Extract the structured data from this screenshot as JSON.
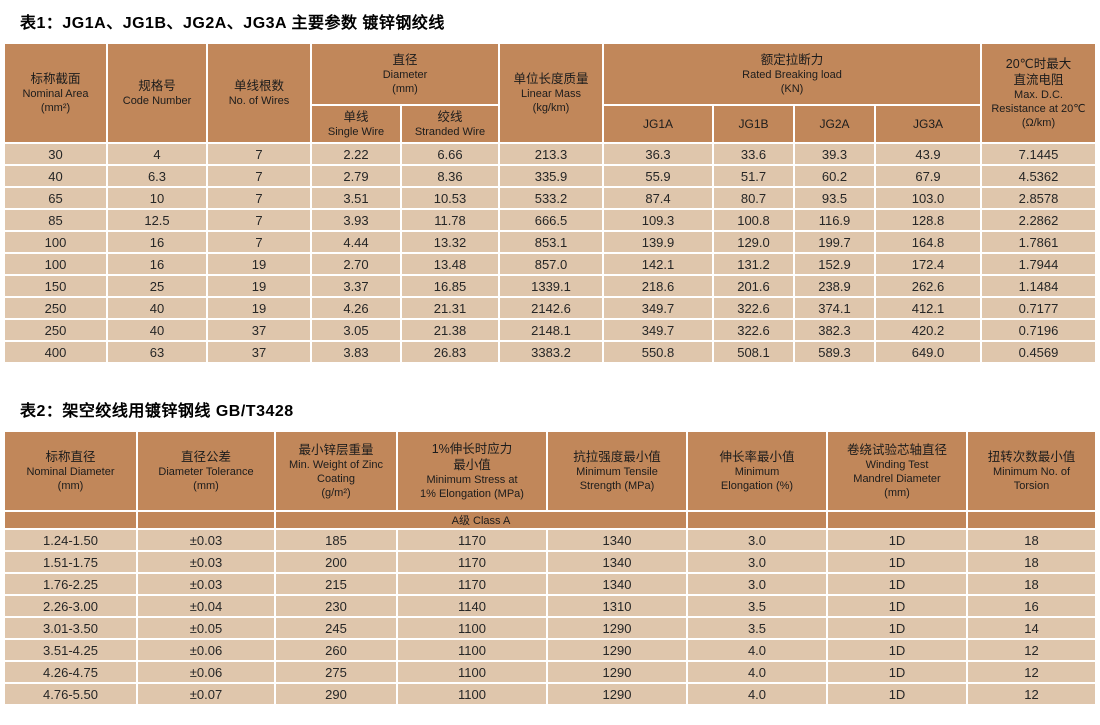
{
  "colors": {
    "header_cell": "#c1875a",
    "data_cell": "#dfc6ac",
    "gap": "#ffffff",
    "text": "#262626"
  },
  "table1": {
    "title": "表1：JG1A、JG1B、JG2A、JG3A 主要参数 镀锌钢绞线",
    "headers": {
      "nominal_area": [
        "标称截面",
        "Nominal Area",
        "(mm²)"
      ],
      "code_number": [
        "规格号",
        "Code Number"
      ],
      "no_of_wires": [
        "单线根数",
        "No. of Wires"
      ],
      "diameter_group": [
        "直径",
        "Diameter",
        "(mm)"
      ],
      "single_wire": [
        "单线",
        "Single Wire"
      ],
      "stranded_wire": [
        "绞线",
        "Stranded Wire"
      ],
      "linear_mass": [
        "单位长度质量",
        "Linear Mass",
        "(kg/km)"
      ],
      "breaking_load_group": [
        "额定拉断力",
        "Rated Breaking load",
        "(KN)"
      ],
      "jg1a": "JG1A",
      "jg1b": "JG1B",
      "jg2a": "JG2A",
      "jg3a": "JG3A",
      "resistance": [
        "20℃时最大",
        "直流电阻",
        "Max. D.C.",
        "Resistance at 20℃",
        "(Ω/km)"
      ]
    },
    "rows": [
      [
        "30",
        "4",
        "7",
        "2.22",
        "6.66",
        "213.3",
        "36.3",
        "33.6",
        "39.3",
        "43.9",
        "7.1445"
      ],
      [
        "40",
        "6.3",
        "7",
        "2.79",
        "8.36",
        "335.9",
        "55.9",
        "51.7",
        "60.2",
        "67.9",
        "4.5362"
      ],
      [
        "65",
        "10",
        "7",
        "3.51",
        "10.53",
        "533.2",
        "87.4",
        "80.7",
        "93.5",
        "103.0",
        "2.8578"
      ],
      [
        "85",
        "12.5",
        "7",
        "3.93",
        "11.78",
        "666.5",
        "109.3",
        "100.8",
        "116.9",
        "128.8",
        "2.2862"
      ],
      [
        "100",
        "16",
        "7",
        "4.44",
        "13.32",
        "853.1",
        "139.9",
        "129.0",
        "199.7",
        "164.8",
        "1.7861"
      ],
      [
        "100",
        "16",
        "19",
        "2.70",
        "13.48",
        "857.0",
        "142.1",
        "131.2",
        "152.9",
        "172.4",
        "1.7944"
      ],
      [
        "150",
        "25",
        "19",
        "3.37",
        "16.85",
        "1339.1",
        "218.6",
        "201.6",
        "238.9",
        "262.6",
        "1.1484"
      ],
      [
        "250",
        "40",
        "19",
        "4.26",
        "21.31",
        "2142.6",
        "349.7",
        "322.6",
        "374.1",
        "412.1",
        "0.7177"
      ],
      [
        "250",
        "40",
        "37",
        "3.05",
        "21.38",
        "2148.1",
        "349.7",
        "322.6",
        "382.3",
        "420.2",
        "0.7196"
      ],
      [
        "400",
        "63",
        "37",
        "3.83",
        "26.83",
        "3383.2",
        "550.8",
        "508.1",
        "589.3",
        "649.0",
        "0.4569"
      ]
    ]
  },
  "table2": {
    "title": "表2：架空绞线用镀锌钢线 GB/T3428",
    "headers": {
      "nominal_diameter": [
        "标称直径",
        "Nominal Diameter",
        "(mm)"
      ],
      "diameter_tolerance": [
        "直径公差",
        "Diameter Tolerance",
        "(mm)"
      ],
      "zinc_coating": [
        "最小锌层重量",
        "Min. Weight of Zinc",
        "Coating",
        "(g/m²)"
      ],
      "stress_elongation": [
        "1%伸长时应力",
        "最小值",
        "Minimum Stress at",
        "1% Elongation (MPa)"
      ],
      "tensile_strength": [
        "抗拉强度最小值",
        "Minimum Tensile",
        "Strength (MPa)"
      ],
      "min_elongation": [
        "伸长率最小值",
        "Minimum",
        "Elongation (%)"
      ],
      "winding_test": [
        "卷绕试验芯轴直径",
        "Winding Test",
        "Mandrel Diameter",
        "(mm)"
      ],
      "torsion": [
        "扭转次数最小值",
        "Minimum No. of",
        "Torsion"
      ]
    },
    "class_label": "A级 Class A",
    "rows": [
      [
        "1.24-1.50",
        "±0.03",
        "185",
        "1170",
        "1340",
        "3.0",
        "1D",
        "18"
      ],
      [
        "1.51-1.75",
        "±0.03",
        "200",
        "1170",
        "1340",
        "3.0",
        "1D",
        "18"
      ],
      [
        "1.76-2.25",
        "±0.03",
        "215",
        "1170",
        "1340",
        "3.0",
        "1D",
        "18"
      ],
      [
        "2.26-3.00",
        "±0.04",
        "230",
        "1140",
        "1310",
        "3.5",
        "1D",
        "16"
      ],
      [
        "3.01-3.50",
        "±0.05",
        "245",
        "1100",
        "1290",
        "3.5",
        "1D",
        "14"
      ],
      [
        "3.51-4.25",
        "±0.06",
        "260",
        "1100",
        "1290",
        "4.0",
        "1D",
        "12"
      ],
      [
        "4.26-4.75",
        "±0.06",
        "275",
        "1100",
        "1290",
        "4.0",
        "1D",
        "12"
      ],
      [
        "4.76-5.50",
        "±0.07",
        "290",
        "1100",
        "1290",
        "4.0",
        "1D",
        "12"
      ]
    ]
  }
}
